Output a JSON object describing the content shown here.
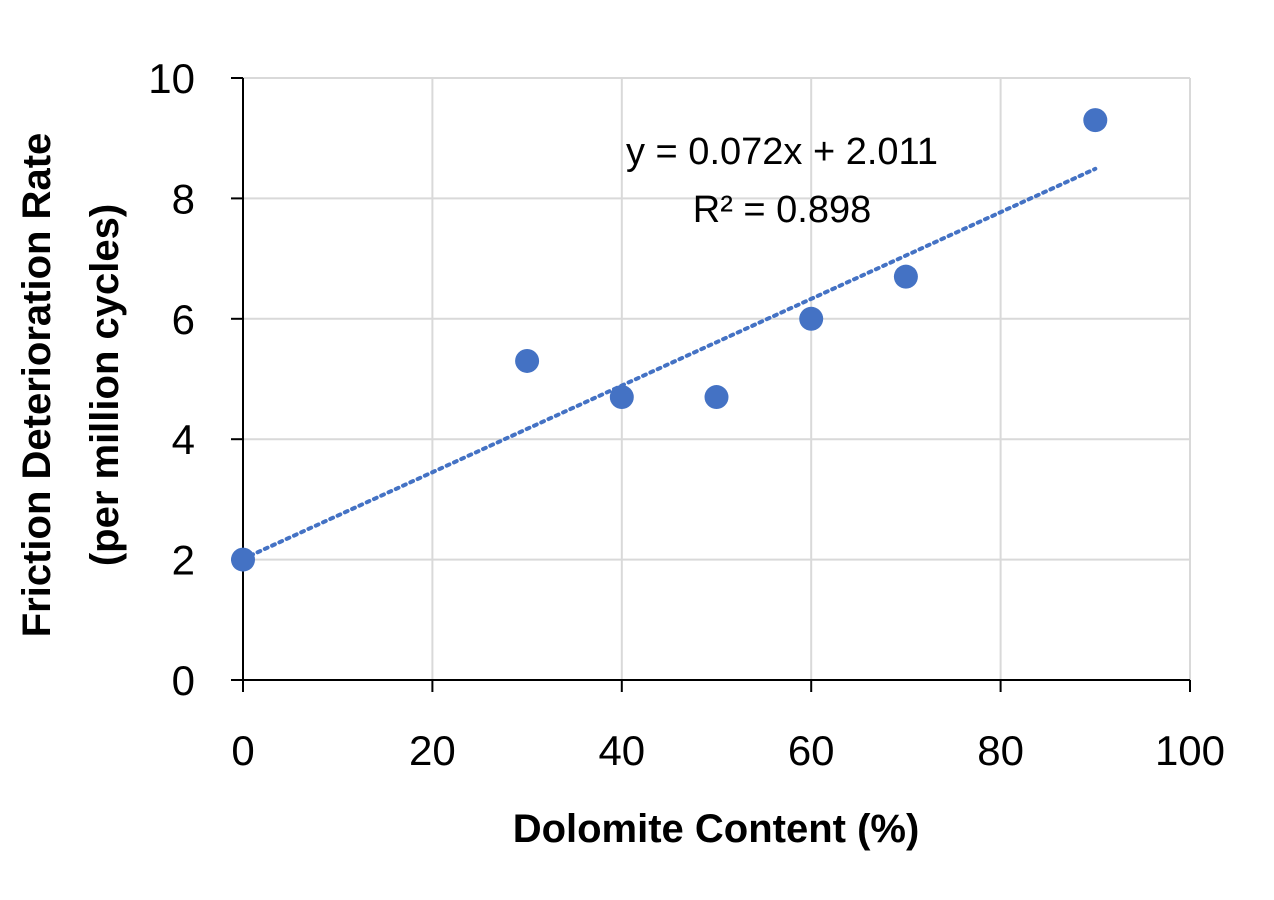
{
  "chart_data": {
    "type": "scatter",
    "title": "",
    "xlabel": "Dolomite Content (%)",
    "ylabel_line1": "Friction Deterioration Rate",
    "ylabel_line2": "(per million cycles)",
    "xlim": [
      0,
      100
    ],
    "ylim": [
      0,
      10
    ],
    "x_ticks": [
      "0",
      "20",
      "40",
      "60",
      "80",
      "100"
    ],
    "y_ticks": [
      "0",
      "2",
      "4",
      "6",
      "8",
      "10"
    ],
    "grid": true,
    "legend": "none",
    "series": [
      {
        "x": [
          0,
          30,
          40,
          50,
          60,
          70,
          90
        ],
        "y": [
          2.0,
          5.3,
          4.7,
          4.7,
          6.0,
          6.7,
          9.3
        ],
        "color": "#4472C4"
      }
    ],
    "trendline": {
      "type": "linear",
      "slope": 0.072,
      "intercept": 2.011,
      "x_range": [
        0,
        90
      ],
      "style": "dotted",
      "color": "#4472C4",
      "equation_label": "y = 0.072x + 2.011",
      "r2_label": "R² = 0.898"
    }
  }
}
